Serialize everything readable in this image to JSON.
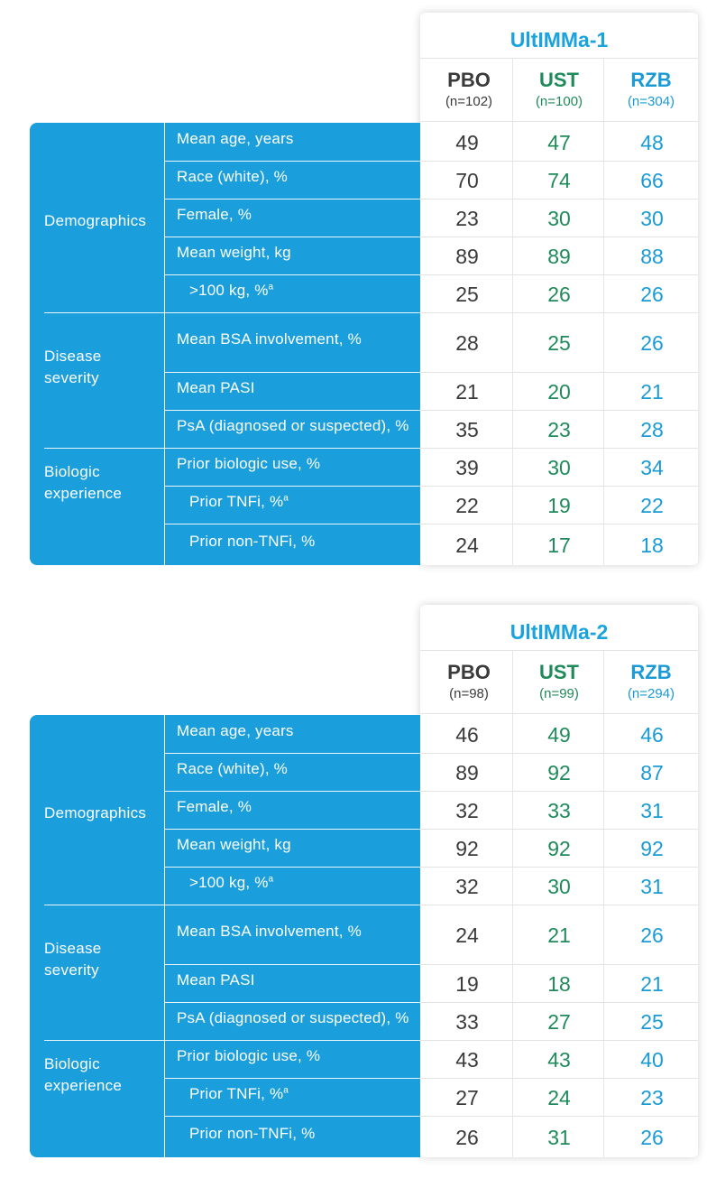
{
  "columns": [
    {
      "label": "PBO",
      "color": "#3a3a3a"
    },
    {
      "label": "UST",
      "color": "#1f8a5a"
    },
    {
      "label": "RZB",
      "color": "#1a9bd6"
    }
  ],
  "groups": [
    {
      "label": [
        "Demographics"
      ]
    },
    {
      "label": [
        "Disease",
        "severity"
      ]
    },
    {
      "label": [
        "Biologic",
        "experience"
      ]
    }
  ],
  "rows": [
    {
      "label": "Mean age, years",
      "sup": ""
    },
    {
      "label": "Race (white), %",
      "sup": ""
    },
    {
      "label": "Female, %",
      "sup": ""
    },
    {
      "label": "Mean weight, kg",
      "sup": ""
    },
    {
      "label": ">100 kg, %",
      "sup": "a"
    },
    {
      "label": "Mean BSA involvement, %",
      "sup": ""
    },
    {
      "label": "Mean PASI",
      "sup": ""
    },
    {
      "label": "PsA (diagnosed or suspected), %",
      "sup": ""
    },
    {
      "label": "Prior biologic use, %",
      "sup": ""
    },
    {
      "label": "Prior TNFi, %",
      "sup": "a"
    },
    {
      "label": "Prior non-TNFi, %",
      "sup": ""
    }
  ],
  "studies": [
    {
      "title": "UltIMMa-1",
      "n": [
        "(n=102)",
        "(n=100)",
        "(n=304)"
      ],
      "values": [
        [
          "49",
          "47",
          "48"
        ],
        [
          "70",
          "74",
          "66"
        ],
        [
          "23",
          "30",
          "30"
        ],
        [
          "89",
          "89",
          "88"
        ],
        [
          "25",
          "26",
          "26"
        ],
        [
          "28",
          "25",
          "26"
        ],
        [
          "21",
          "20",
          "21"
        ],
        [
          "35",
          "23",
          "28"
        ],
        [
          "39",
          "30",
          "34"
        ],
        [
          "22",
          "19",
          "22"
        ],
        [
          "24",
          "17",
          "18"
        ]
      ]
    },
    {
      "title": "UltIMMa-2",
      "n": [
        "(n=98)",
        "(n=99)",
        "(n=294)"
      ],
      "values": [
        [
          "46",
          "49",
          "46"
        ],
        [
          "89",
          "92",
          "87"
        ],
        [
          "32",
          "33",
          "31"
        ],
        [
          "92",
          "92",
          "92"
        ],
        [
          "32",
          "30",
          "31"
        ],
        [
          "24",
          "21",
          "26"
        ],
        [
          "19",
          "18",
          "21"
        ],
        [
          "33",
          "27",
          "25"
        ],
        [
          "43",
          "43",
          "40"
        ],
        [
          "27",
          "24",
          "23"
        ],
        [
          "26",
          "31",
          "26"
        ]
      ]
    }
  ]
}
